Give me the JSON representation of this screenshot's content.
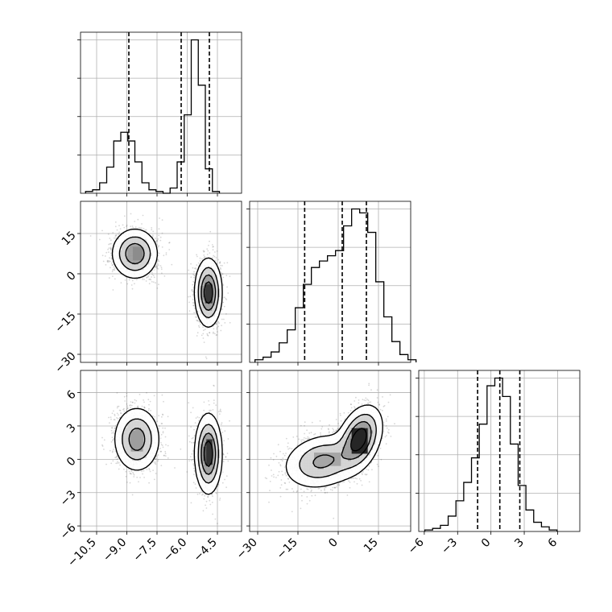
{
  "chart_data": {
    "type": "corner",
    "title": "",
    "parameters": [
      {
        "label": "",
        "range": [
          -11.3,
          -3.3
        ],
        "ticks": [
          -10.5,
          -9.0,
          -7.5,
          -6.0,
          -4.5
        ],
        "tick_labels": [
          "−10.5",
          "−9.0",
          "−7.5",
          "−6.0",
          "−4.5"
        ],
        "quantiles": [
          -8.9,
          -6.3,
          -4.9
        ],
        "hist_start": -11.05,
        "hist_bin_width": 0.35,
        "hist_counts": [
          1,
          2,
          6,
          15,
          30,
          35,
          30,
          18,
          6,
          2,
          1,
          0,
          3,
          18,
          45,
          88,
          62,
          14,
          1
        ]
      },
      {
        "label": "",
        "range": [
          -33,
          27
        ],
        "ticks": [
          -30,
          -15,
          0,
          15
        ],
        "tick_labels": [
          "−30",
          "−15",
          "0",
          "15"
        ],
        "quantiles": [
          -12.5,
          1.5,
          10.5
        ],
        "hist_start": -31,
        "hist_bin_width": 3,
        "hist_counts": [
          2,
          4,
          8,
          15,
          25,
          42,
          60,
          73,
          78,
          82,
          86,
          105,
          118,
          115,
          100,
          62,
          35,
          16,
          6,
          2
        ]
      },
      {
        "label": "",
        "range": [
          -6.5,
          8.0
        ],
        "ticks": [
          -6,
          -3,
          0,
          3,
          6
        ],
        "tick_labels": [
          "−6",
          "−3",
          "0",
          "3",
          "6"
        ],
        "quantiles": [
          -1.2,
          0.8,
          2.6
        ],
        "hist_start": -5.95,
        "hist_bin_width": 0.7,
        "hist_counts": [
          1,
          2,
          4,
          10,
          20,
          32,
          48,
          70,
          95,
          100,
          88,
          57,
          30,
          14,
          6,
          3,
          1
        ]
      }
    ],
    "pairs": [
      {
        "row": 1,
        "col": 0,
        "modes": [
          {
            "mu": [
              -8.6,
              7.5
            ],
            "sd": [
              0.55,
              4.5
            ],
            "rho": 0,
            "weight": 0.5
          },
          {
            "mu": [
              -4.95,
              -7.0
            ],
            "sd": [
              0.32,
              6.0
            ],
            "rho": 0,
            "weight": 0.5
          }
        ],
        "pixel_boxes": [
          [
            -8.7,
            5.0,
            -8.2,
            10.0,
            0.45
          ],
          [
            -5.1,
            -11.0,
            -4.75,
            -4.0,
            0.78
          ]
        ]
      },
      {
        "row": 2,
        "col": 0,
        "modes": [
          {
            "mu": [
              -8.5,
              1.8
            ],
            "sd": [
              0.55,
              1.4
            ],
            "rho": 0,
            "weight": 0.5
          },
          {
            "mu": [
              -4.95,
              0.5
            ],
            "sd": [
              0.32,
              1.7
            ],
            "rho": 0,
            "weight": 0.5
          }
        ],
        "pixel_boxes": [
          [
            -8.8,
            0.7,
            -8.2,
            2.5,
            0.38
          ],
          [
            -5.05,
            -0.5,
            -4.75,
            1.8,
            0.8
          ]
        ]
      },
      {
        "row": 2,
        "col": 1,
        "modes": [
          {
            "mu": [
              -6.0,
              -0.2
            ],
            "sd": [
              7.0,
              1.2
            ],
            "rho": 0.2,
            "weight": 0.5
          },
          {
            "mu": [
              8.0,
              1.9
            ],
            "sd": [
              4.0,
              1.4
            ],
            "rho": 0.35,
            "weight": 0.5
          }
        ],
        "pixel_boxes": [
          [
            5.0,
            0.5,
            11.0,
            2.8,
            0.85
          ],
          [
            -9.0,
            -0.6,
            1.0,
            0.6,
            0.35
          ]
        ]
      }
    ]
  }
}
